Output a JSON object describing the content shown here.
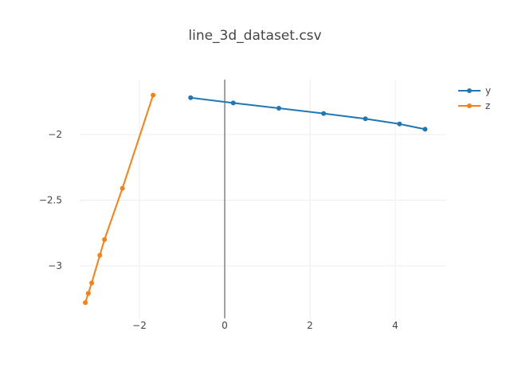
{
  "chart_data": {
    "type": "line",
    "title": "line_3d_dataset.csv",
    "xlabel": "",
    "ylabel": "",
    "xlim": [
      -3.4,
      5.2
    ],
    "ylim": [
      -3.4,
      -1.6
    ],
    "x_ticks": [
      -2,
      0,
      2,
      4
    ],
    "y_ticks": [
      -2,
      -2.5,
      -3
    ],
    "x_tick_labels": [
      "−2",
      "0",
      "2",
      "4"
    ],
    "y_tick_labels": [
      "−2",
      "−2.5",
      "−3"
    ],
    "grid": true,
    "zero_line_x": true,
    "legend_position": "top-right",
    "series": [
      {
        "name": "y",
        "color": "#1f77b4",
        "x": [
          -0.8,
          0.2,
          1.27,
          2.32,
          3.3,
          4.1,
          4.7
        ],
        "y": [
          -1.72,
          -1.76,
          -1.8,
          -1.84,
          -1.88,
          -1.92,
          -1.96
        ]
      },
      {
        "name": "z",
        "color": "#ff7f0e",
        "x": [
          -1.68,
          -2.4,
          -2.82,
          -2.93,
          -3.12,
          -3.2,
          -3.27
        ],
        "y": [
          -1.7,
          -2.41,
          -2.8,
          -2.92,
          -3.13,
          -3.21,
          -3.28
        ]
      }
    ]
  }
}
